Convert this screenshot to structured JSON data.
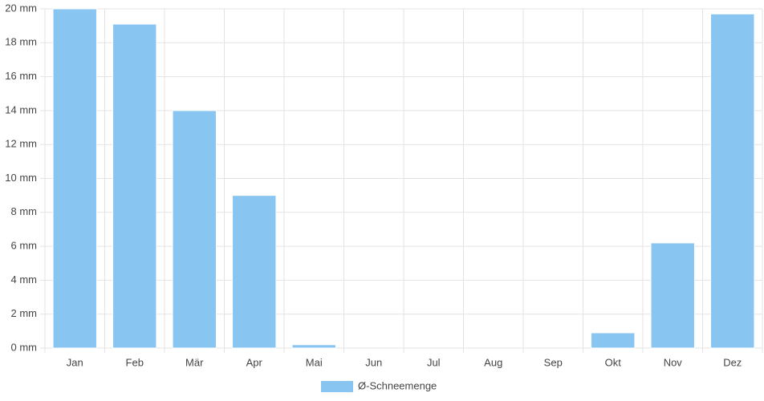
{
  "chart_data": {
    "type": "bar",
    "categories": [
      "Jan",
      "Feb",
      "Mär",
      "Apr",
      "Mai",
      "Jun",
      "Jul",
      "Aug",
      "Sep",
      "Okt",
      "Nov",
      "Dez"
    ],
    "series": [
      {
        "name": "Ø-Schneemenge",
        "color": "#88c5f1",
        "values": [
          20,
          19.1,
          14,
          9,
          0.2,
          0,
          0,
          0,
          0,
          0.9,
          6.2,
          19.7
        ]
      }
    ],
    "ylim": [
      0,
      20
    ],
    "yticks": [
      {
        "value": 0,
        "label": "0 mm"
      },
      {
        "value": 2,
        "label": "2 mm"
      },
      {
        "value": 4,
        "label": "4 mm"
      },
      {
        "value": 6,
        "label": "6 mm"
      },
      {
        "value": 8,
        "label": "8 mm"
      },
      {
        "value": 10,
        "label": "10 mm"
      },
      {
        "value": 12,
        "label": "12 mm"
      },
      {
        "value": 14,
        "label": "14 mm"
      },
      {
        "value": 16,
        "label": "16 mm"
      },
      {
        "value": 18,
        "label": "18 mm"
      },
      {
        "value": 20,
        "label": "20 mm"
      }
    ],
    "grid": true,
    "legend": "bottom"
  }
}
